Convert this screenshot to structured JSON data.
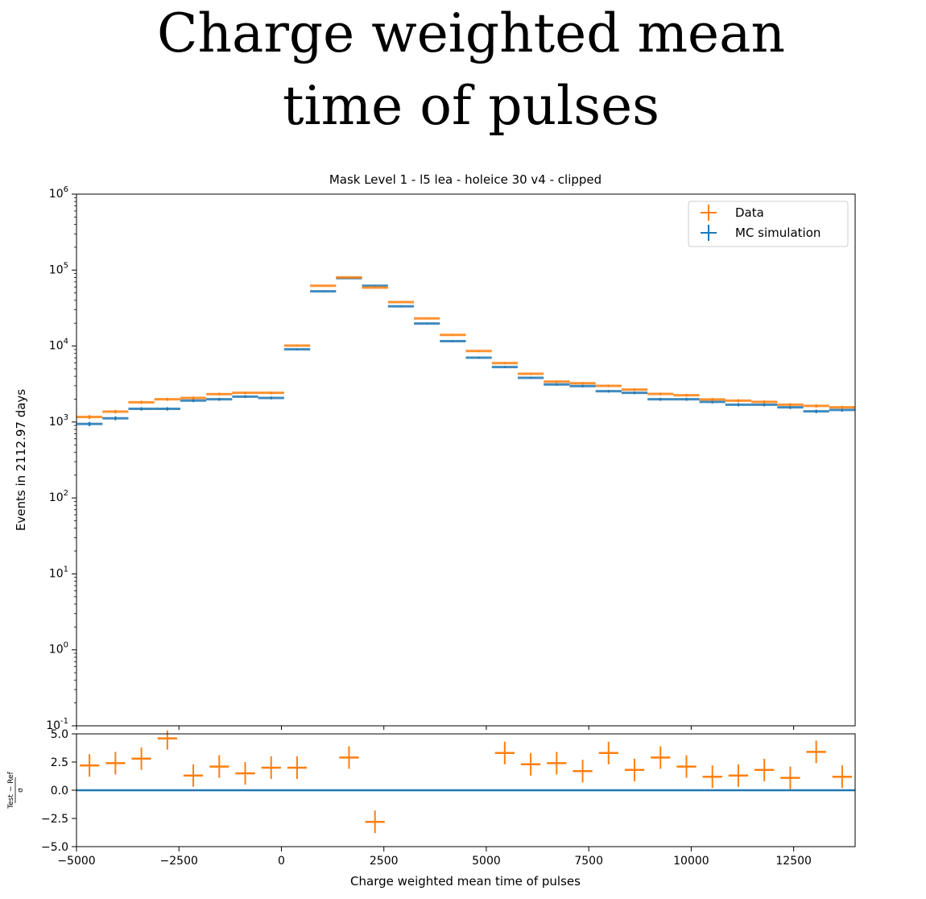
{
  "chart_data": [
    {
      "type": "scatter",
      "suptitle_lines": [
        "Charge weighted mean",
        "time of pulses"
      ],
      "title": "Mask Level 1 - l5 lea - holeice 30 v4 - clipped",
      "xlabel": "",
      "ylabel": "Events in 2112.97 days",
      "yscale": "log",
      "xlim": [
        -5000,
        14000
      ],
      "ylim": [
        0.1,
        1000000
      ],
      "ytick_labels": [
        "10^-1",
        "10^0",
        "10^1",
        "10^2",
        "10^3",
        "10^4",
        "10^5",
        "10^6"
      ],
      "legend_placement": "top-right",
      "bin_edges_range": [
        -5000,
        14000
      ],
      "n_bins": 30,
      "series": [
        {
          "name": "Data",
          "color": "#ff7f0e",
          "values": [
            1164,
            1370,
            1820,
            1990,
            2075,
            2330,
            2420,
            2420,
            10150,
            62200,
            80000,
            58900,
            37900,
            23100,
            14000,
            8610,
            5970,
            4320,
            3400,
            3240,
            2990,
            2670,
            2340,
            2250,
            1980,
            1910,
            1840,
            1690,
            1630,
            1560
          ]
        },
        {
          "name": "MC simulation",
          "color": "#1f77b4",
          "values": [
            942,
            1120,
            1490,
            1490,
            1915,
            1990,
            2160,
            2075,
            9060,
            52500,
            78500,
            62200,
            33300,
            19800,
            11600,
            7030,
            5290,
            3820,
            3120,
            2970,
            2540,
            2420,
            1990,
            1990,
            1840,
            1690,
            1690,
            1560,
            1380,
            1440
          ]
        }
      ]
    },
    {
      "type": "scatter",
      "xlabel": "Charge weighted mean time of pulses",
      "ylabel": "(Test − Ref) / σ",
      "ylabel_num": "Test − Ref",
      "ylabel_den": "σ",
      "xlim": [
        -5000,
        14000
      ],
      "ylim": [
        -5,
        5
      ],
      "xticks": [
        -5000,
        -2500,
        0,
        2500,
        5000,
        7500,
        10000,
        12500
      ],
      "xtick_labels": [
        "−5000",
        "−2500",
        "0",
        "2500",
        "5000",
        "7500",
        "10000",
        "12500"
      ],
      "yticks": [
        -5,
        -2.5,
        0,
        2.5,
        5
      ],
      "ytick_labels": [
        "−5.0",
        "−2.5",
        "0.0",
        "2.5",
        "5.0"
      ],
      "reference_line": {
        "y": 0,
        "color": "#1f77b4"
      },
      "series": [
        {
          "name": "Data",
          "color": "#ff7f0e",
          "error": 1,
          "values": [
            2.2,
            2.4,
            2.8,
            4.6,
            1.3,
            2.1,
            1.5,
            2.0,
            2.0,
            null,
            2.9,
            -2.8,
            null,
            null,
            null,
            null,
            3.3,
            2.3,
            2.4,
            1.7,
            3.3,
            1.8,
            2.9,
            2.1,
            1.2,
            1.3,
            1.8,
            1.1,
            3.4,
            1.2
          ]
        }
      ]
    }
  ]
}
